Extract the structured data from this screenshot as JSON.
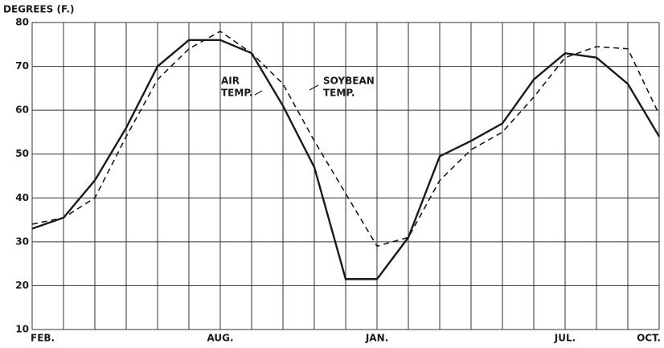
{
  "chart_data": {
    "type": "line",
    "y_label": "DEGREES (F.)",
    "categories": [
      "FEB.",
      null,
      null,
      null,
      null,
      null,
      "AUG.",
      null,
      null,
      null,
      null,
      "JAN.",
      null,
      null,
      null,
      null,
      null,
      "JUL.",
      null,
      null,
      "OCT."
    ],
    "series": [
      {
        "name": "AIR TEMP.",
        "color": "#1a1a1a",
        "style": "solid",
        "values": [
          33,
          35.5,
          44,
          56,
          70,
          76,
          76,
          73,
          61,
          47,
          21.5,
          21.5,
          31,
          49.5,
          53,
          57,
          67,
          73,
          72,
          66,
          54
        ]
      },
      {
        "name": "SOYBEAN TEMP.",
        "color": "#1a1a1a",
        "style": "dashed",
        "values": [
          34,
          35.5,
          40,
          54,
          67,
          74,
          78,
          73,
          66,
          53,
          41,
          29,
          31,
          44,
          51,
          55,
          63,
          72,
          74.5,
          74,
          59
        ]
      }
    ],
    "annotations": [
      "AIR",
      "TEMP.",
      "SOYBEAN",
      "TEMP."
    ],
    "ylim": [
      10,
      80
    ],
    "yticks": [
      10,
      20,
      30,
      40,
      50,
      60,
      70,
      80
    ],
    "grid": true
  }
}
